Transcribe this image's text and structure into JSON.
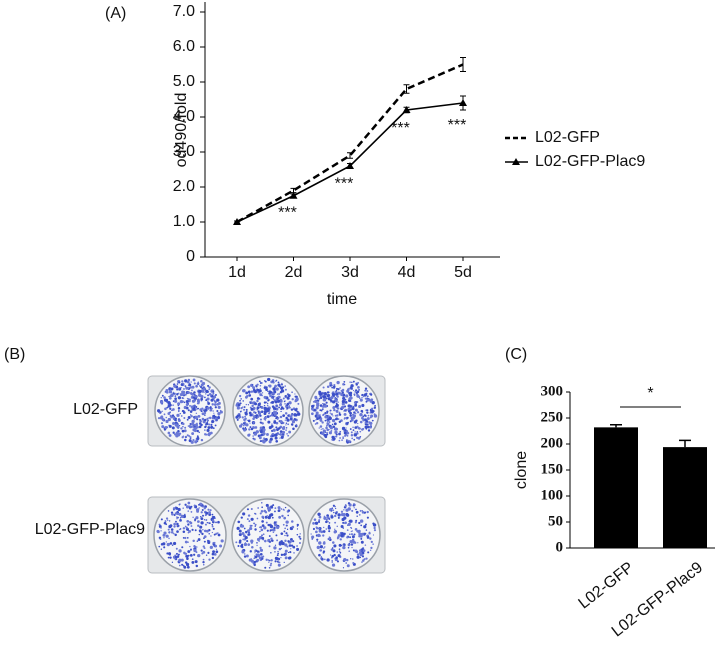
{
  "panel_b": {
    "label": "(B)",
    "rows": [
      "L02-GFP",
      "L02-GFP-Plac9"
    ]
  },
  "chart_data": [
    {
      "type": "line",
      "panel": "(A)",
      "x_label": "time",
      "y_label": "od490/fold",
      "categories": [
        "1d",
        "2d",
        "3d",
        "4d",
        "5d"
      ],
      "series": [
        {
          "name": "L02-GFP",
          "color": "#000000",
          "dash": true,
          "marker": "none",
          "values": [
            1.0,
            1.9,
            2.9,
            4.8,
            5.5
          ],
          "errors": [
            0.03,
            0.06,
            0.08,
            0.12,
            0.2
          ]
        },
        {
          "name": "L02-GFP-Plac9",
          "color": "#000000",
          "dash": false,
          "marker": "triangle",
          "values": [
            1.0,
            1.75,
            2.6,
            4.2,
            4.4
          ],
          "errors": [
            0.03,
            0.05,
            0.07,
            0.08,
            0.2
          ]
        }
      ],
      "significance": [
        null,
        "***",
        "***",
        "***",
        "***"
      ],
      "ylim": [
        0,
        7
      ],
      "yticks": [
        0,
        {
          "value": 1,
          "label": "1.0"
        },
        {
          "value": 2,
          "label": "2.0"
        },
        {
          "value": 3,
          "label": "3.0"
        },
        {
          "value": 4,
          "label": "4.0"
        },
        {
          "value": 5,
          "label": "5.0"
        },
        {
          "value": 6,
          "label": "6.0"
        },
        {
          "value": 7,
          "label": "7.0"
        }
      ],
      "legend": "right"
    },
    {
      "type": "bar",
      "panel": "(C)",
      "y_label": "clone",
      "categories": [
        "L02-GFP",
        "L02-GFP-Plac9"
      ],
      "values": [
        232,
        194
      ],
      "errors": [
        5,
        13
      ],
      "color": "#000000",
      "significance": "*",
      "ylim": [
        0,
        300
      ],
      "yticks": [
        0,
        50,
        100,
        150,
        200,
        250,
        300
      ]
    }
  ]
}
